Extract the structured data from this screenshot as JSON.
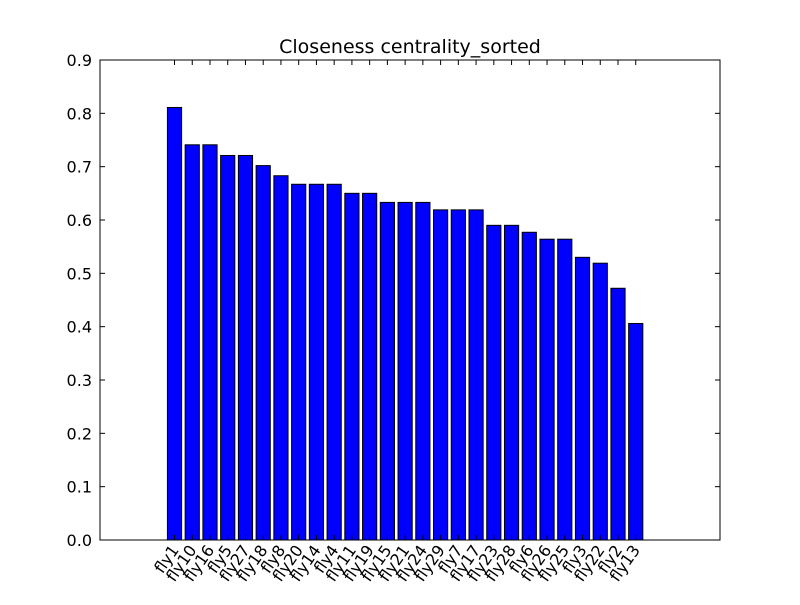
{
  "chart_data": {
    "type": "bar",
    "title": "Closeness centrality_sorted",
    "xlabel": "",
    "ylabel": "",
    "ylim": [
      0,
      0.9
    ],
    "yticks": [
      "0.0",
      "0.1",
      "0.2",
      "0.3",
      "0.4",
      "0.5",
      "0.6",
      "0.7",
      "0.8",
      "0.9"
    ],
    "categories": [
      "fly1",
      "fly10",
      "fly16",
      "fly5",
      "fly27",
      "fly18",
      "fly8",
      "fly20",
      "fly14",
      "fly4",
      "fly11",
      "fly19",
      "fly15",
      "fly21",
      "fly24",
      "fly29",
      "fly7",
      "fly17",
      "fly23",
      "fly28",
      "fly6",
      "fly26",
      "fly25",
      "fly3",
      "fly22",
      "fly2",
      "fly13"
    ],
    "values": [
      0.811,
      0.741,
      0.741,
      0.721,
      0.721,
      0.702,
      0.683,
      0.667,
      0.667,
      0.667,
      0.65,
      0.65,
      0.633,
      0.633,
      0.633,
      0.619,
      0.619,
      0.619,
      0.59,
      0.59,
      0.577,
      0.564,
      0.564,
      0.53,
      0.519,
      0.472,
      0.406
    ],
    "bar_color": "#0000ff",
    "edge_color": "#000000",
    "grid": false
  }
}
